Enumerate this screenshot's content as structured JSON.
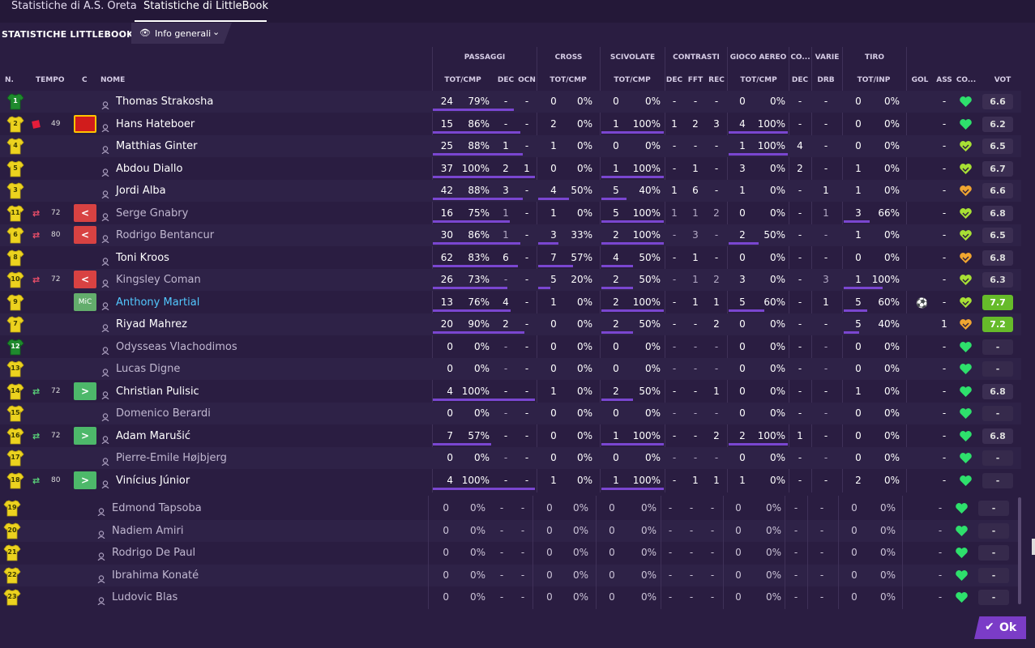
{
  "tabs": [
    "Statistiche di A.S. Oreta",
    "Statistiche di LittleBook"
  ],
  "title": "STATISTICHE LITTLEBOOK",
  "view": {
    "label": "Info generali"
  },
  "ok_label": "Ok",
  "groups": [
    "PASSAGGI",
    "CROSS",
    "SCIVOLATE",
    "CONTRASTI",
    "GIOCO AEREO",
    "CO...",
    "VARIE",
    "TIRO"
  ],
  "headers": [
    "N.",
    "TEMPO",
    "C",
    "NOME",
    "TOT/CMP",
    "DEC",
    "OCN",
    "TOT/CMP",
    "TOT/CMP",
    "DEC",
    "FFT",
    "REC",
    "TOT/CMP",
    "DEC",
    "DRB",
    "TOT/INP",
    "GOL",
    "ASS",
    "CO...",
    "VOT"
  ],
  "rows": [
    {
      "num": "1",
      "kit": "gk",
      "event": null,
      "min": "",
      "badge": null,
      "name": "Thomas Strakosha",
      "style": "",
      "pass_tot": "24",
      "pass_pct": "79%",
      "pass_bar": 0.79,
      "pass_dec": "-",
      "pass_ocn": "-",
      "cross_tot": "0",
      "cross_pct": "0%",
      "cross_bar": 0,
      "tack_tot": "0",
      "tack_pct": "0%",
      "tack_bar": 0,
      "con_dec": "-",
      "con_fft": "-",
      "con_rec": "-",
      "air_tot": "0",
      "air_pct": "0%",
      "air_bar": 0,
      "co_dec": "-",
      "drb": "-",
      "shot_tot": "0",
      "shot_pct": "0%",
      "shot_bar": 0,
      "gol": "",
      "ass": "-",
      "mood": "heart",
      "vot": "6.6",
      "vot_style": ""
    },
    {
      "num": "2",
      "kit": "out",
      "event": "red",
      "min": "49",
      "badge": "injury",
      "name": "Hans Hateboer",
      "style": "",
      "pass_tot": "15",
      "pass_pct": "86%",
      "pass_bar": 0.86,
      "pass_dec": "-",
      "pass_ocn": "-",
      "cross_tot": "2",
      "cross_pct": "0%",
      "cross_bar": 0,
      "tack_tot": "1",
      "tack_pct": "100%",
      "tack_bar": 1,
      "con_dec": "1",
      "con_fft": "2",
      "con_rec": "3",
      "air_tot": "4",
      "air_pct": "100%",
      "air_bar": 1,
      "co_dec": "-",
      "drb": "-",
      "shot_tot": "0",
      "shot_pct": "0%",
      "shot_bar": 0,
      "gol": "",
      "ass": "-",
      "mood": "heart",
      "vot": "6.2",
      "vot_style": ""
    },
    {
      "num": "4",
      "kit": "out",
      "event": null,
      "min": "",
      "badge": null,
      "name": "Matthias Ginter",
      "style": "",
      "pass_tot": "25",
      "pass_pct": "88%",
      "pass_bar": 0.88,
      "pass_dec": "1",
      "pass_ocn": "-",
      "cross_tot": "1",
      "cross_pct": "0%",
      "cross_bar": 0,
      "tack_tot": "0",
      "tack_pct": "0%",
      "tack_bar": 0,
      "con_dec": "-",
      "con_fft": "-",
      "con_rec": "-",
      "air_tot": "1",
      "air_pct": "100%",
      "air_bar": 1,
      "co_dec": "4",
      "drb": "-",
      "shot_tot": "0",
      "shot_pct": "0%",
      "shot_bar": 0,
      "gol": "",
      "ass": "-",
      "mood": "heart-y",
      "vot": "6.5",
      "vot_style": ""
    },
    {
      "num": "5",
      "kit": "out",
      "event": null,
      "min": "",
      "badge": null,
      "name": "Abdou Diallo",
      "style": "",
      "pass_tot": "37",
      "pass_pct": "100%",
      "pass_bar": 1,
      "pass_dec": "2",
      "pass_ocn": "1",
      "cross_tot": "0",
      "cross_pct": "0%",
      "cross_bar": 0,
      "tack_tot": "1",
      "tack_pct": "100%",
      "tack_bar": 1,
      "con_dec": "-",
      "con_fft": "1",
      "con_rec": "-",
      "air_tot": "3",
      "air_pct": "0%",
      "air_bar": 0,
      "co_dec": "2",
      "drb": "-",
      "shot_tot": "1",
      "shot_pct": "0%",
      "shot_bar": 0,
      "gol": "",
      "ass": "-",
      "mood": "heart-y",
      "vot": "6.7",
      "vot_style": ""
    },
    {
      "num": "3",
      "kit": "out",
      "event": null,
      "min": "",
      "badge": null,
      "name": "Jordi Alba",
      "style": "",
      "pass_tot": "42",
      "pass_pct": "88%",
      "pass_bar": 0.88,
      "pass_dec": "3",
      "pass_ocn": "-",
      "cross_tot": "4",
      "cross_pct": "50%",
      "cross_bar": 0.5,
      "tack_tot": "5",
      "tack_pct": "40%",
      "tack_bar": 0.4,
      "con_dec": "1",
      "con_fft": "6",
      "con_rec": "-",
      "air_tot": "1",
      "air_pct": "0%",
      "air_bar": 0,
      "co_dec": "-",
      "drb": "1",
      "shot_tot": "1",
      "shot_pct": "0%",
      "shot_bar": 0,
      "gol": "",
      "ass": "-",
      "mood": "heart-o",
      "vot": "6.6",
      "vot_style": ""
    },
    {
      "num": "11",
      "kit": "out",
      "event": "subout",
      "min": "72",
      "badge": "out",
      "name": "Serge Gnabry",
      "style": "dim",
      "pass_tot": "16",
      "pass_pct": "75%",
      "pass_bar": 0.75,
      "pass_dec": "1",
      "pass_ocn": "-",
      "cross_tot": "1",
      "cross_pct": "0%",
      "cross_bar": 0,
      "tack_tot": "5",
      "tack_pct": "100%",
      "tack_bar": 1,
      "con_dec": "1",
      "con_fft": "1",
      "con_rec": "2",
      "air_tot": "0",
      "air_pct": "0%",
      "air_bar": 0,
      "co_dec": "-",
      "drb": "1",
      "shot_tot": "3",
      "shot_pct": "66%",
      "shot_bar": 0.66,
      "gol": "",
      "ass": "-",
      "mood": "heart-y",
      "vot": "6.8",
      "vot_style": ""
    },
    {
      "num": "6",
      "kit": "out",
      "event": "subout",
      "min": "80",
      "badge": "out",
      "name": "Rodrigo Bentancur",
      "style": "dim",
      "pass_tot": "30",
      "pass_pct": "86%",
      "pass_bar": 0.86,
      "pass_dec": "1",
      "pass_ocn": "-",
      "cross_tot": "3",
      "cross_pct": "33%",
      "cross_bar": 0.33,
      "tack_tot": "2",
      "tack_pct": "100%",
      "tack_bar": 1,
      "con_dec": "-",
      "con_fft": "3",
      "con_rec": "-",
      "air_tot": "2",
      "air_pct": "50%",
      "air_bar": 0.5,
      "co_dec": "-",
      "drb": "-",
      "shot_tot": "1",
      "shot_pct": "0%",
      "shot_bar": 0,
      "gol": "",
      "ass": "-",
      "mood": "heart-y",
      "vot": "6.5",
      "vot_style": ""
    },
    {
      "num": "8",
      "kit": "out",
      "event": null,
      "min": "",
      "badge": null,
      "name": "Toni Kroos",
      "style": "",
      "pass_tot": "62",
      "pass_pct": "83%",
      "pass_bar": 0.83,
      "pass_dec": "6",
      "pass_ocn": "-",
      "cross_tot": "7",
      "cross_pct": "57%",
      "cross_bar": 0.57,
      "tack_tot": "4",
      "tack_pct": "50%",
      "tack_bar": 0.5,
      "con_dec": "-",
      "con_fft": "1",
      "con_rec": "-",
      "air_tot": "0",
      "air_pct": "0%",
      "air_bar": 0,
      "co_dec": "-",
      "drb": "-",
      "shot_tot": "0",
      "shot_pct": "0%",
      "shot_bar": 0,
      "gol": "",
      "ass": "-",
      "mood": "heart-o",
      "vot": "6.8",
      "vot_style": ""
    },
    {
      "num": "10",
      "kit": "out",
      "event": "subout",
      "min": "72",
      "badge": "out",
      "name": "Kingsley Coman",
      "style": "dim",
      "pass_tot": "26",
      "pass_pct": "73%",
      "pass_bar": 0.73,
      "pass_dec": "-",
      "pass_ocn": "-",
      "cross_tot": "5",
      "cross_pct": "20%",
      "cross_bar": 0.2,
      "tack_tot": "2",
      "tack_pct": "50%",
      "tack_bar": 0.5,
      "con_dec": "-",
      "con_fft": "1",
      "con_rec": "2",
      "air_tot": "3",
      "air_pct": "0%",
      "air_bar": 0,
      "co_dec": "-",
      "drb": "3",
      "shot_tot": "1",
      "shot_pct": "100%",
      "shot_bar": 1,
      "gol": "",
      "ass": "-",
      "mood": "heart-y",
      "vot": "6.3",
      "vot_style": ""
    },
    {
      "num": "9",
      "kit": "out",
      "event": null,
      "min": "",
      "badge": "mic",
      "name": "Anthony Martial",
      "style": "hl",
      "pass_tot": "13",
      "pass_pct": "76%",
      "pass_bar": 0.76,
      "pass_dec": "4",
      "pass_ocn": "-",
      "cross_tot": "1",
      "cross_pct": "0%",
      "cross_bar": 0,
      "tack_tot": "2",
      "tack_pct": "100%",
      "tack_bar": 1,
      "con_dec": "-",
      "con_fft": "1",
      "con_rec": "1",
      "air_tot": "5",
      "air_pct": "60%",
      "air_bar": 0.6,
      "co_dec": "-",
      "drb": "1",
      "shot_tot": "5",
      "shot_pct": "60%",
      "shot_bar": 0.6,
      "gol": "ball",
      "ass": "-",
      "mood": "heart-y",
      "vot": "7.7",
      "vot_style": "green"
    },
    {
      "num": "7",
      "kit": "out",
      "event": null,
      "min": "",
      "badge": null,
      "name": "Riyad Mahrez",
      "style": "",
      "pass_tot": "20",
      "pass_pct": "90%",
      "pass_bar": 0.9,
      "pass_dec": "2",
      "pass_ocn": "-",
      "cross_tot": "0",
      "cross_pct": "0%",
      "cross_bar": 0,
      "tack_tot": "2",
      "tack_pct": "50%",
      "tack_bar": 0.5,
      "con_dec": "-",
      "con_fft": "-",
      "con_rec": "2",
      "air_tot": "0",
      "air_pct": "0%",
      "air_bar": 0,
      "co_dec": "-",
      "drb": "-",
      "shot_tot": "5",
      "shot_pct": "40%",
      "shot_bar": 0.4,
      "gol": "",
      "ass": "1",
      "mood": "heart-o",
      "vot": "7.2",
      "vot_style": "green"
    },
    {
      "num": "12",
      "kit": "gk",
      "event": null,
      "min": "",
      "badge": null,
      "name": "Odysseas Vlachodimos",
      "style": "dim",
      "pass_tot": "0",
      "pass_pct": "0%",
      "pass_bar": 0,
      "pass_dec": "-",
      "pass_ocn": "-",
      "cross_tot": "0",
      "cross_pct": "0%",
      "cross_bar": 0,
      "tack_tot": "0",
      "tack_pct": "0%",
      "tack_bar": 0,
      "con_dec": "-",
      "con_fft": "-",
      "con_rec": "-",
      "air_tot": "0",
      "air_pct": "0%",
      "air_bar": 0,
      "co_dec": "-",
      "drb": "-",
      "shot_tot": "0",
      "shot_pct": "0%",
      "shot_bar": 0,
      "gol": "",
      "ass": "-",
      "mood": "heart",
      "vot": "-",
      "vot_style": "none"
    },
    {
      "num": "13",
      "kit": "out",
      "event": null,
      "min": "",
      "badge": null,
      "name": "Lucas Digne",
      "style": "dim",
      "pass_tot": "0",
      "pass_pct": "0%",
      "pass_bar": 0,
      "pass_dec": "-",
      "pass_ocn": "-",
      "cross_tot": "0",
      "cross_pct": "0%",
      "cross_bar": 0,
      "tack_tot": "0",
      "tack_pct": "0%",
      "tack_bar": 0,
      "con_dec": "-",
      "con_fft": "-",
      "con_rec": "-",
      "air_tot": "0",
      "air_pct": "0%",
      "air_bar": 0,
      "co_dec": "-",
      "drb": "-",
      "shot_tot": "0",
      "shot_pct": "0%",
      "shot_bar": 0,
      "gol": "",
      "ass": "-",
      "mood": "heart",
      "vot": "-",
      "vot_style": "none"
    },
    {
      "num": "14",
      "kit": "out",
      "event": "subin",
      "min": "72",
      "badge": "in",
      "name": "Christian Pulisic",
      "style": "",
      "pass_tot": "4",
      "pass_pct": "100%",
      "pass_bar": 1,
      "pass_dec": "-",
      "pass_ocn": "-",
      "cross_tot": "1",
      "cross_pct": "0%",
      "cross_bar": 0,
      "tack_tot": "2",
      "tack_pct": "50%",
      "tack_bar": 0.5,
      "con_dec": "-",
      "con_fft": "-",
      "con_rec": "1",
      "air_tot": "0",
      "air_pct": "0%",
      "air_bar": 0,
      "co_dec": "-",
      "drb": "-",
      "shot_tot": "1",
      "shot_pct": "0%",
      "shot_bar": 0,
      "gol": "",
      "ass": "-",
      "mood": "heart",
      "vot": "6.8",
      "vot_style": ""
    },
    {
      "num": "15",
      "kit": "out",
      "event": null,
      "min": "",
      "badge": null,
      "name": "Domenico Berardi",
      "style": "dim",
      "pass_tot": "0",
      "pass_pct": "0%",
      "pass_bar": 0,
      "pass_dec": "-",
      "pass_ocn": "-",
      "cross_tot": "0",
      "cross_pct": "0%",
      "cross_bar": 0,
      "tack_tot": "0",
      "tack_pct": "0%",
      "tack_bar": 0,
      "con_dec": "-",
      "con_fft": "-",
      "con_rec": "-",
      "air_tot": "0",
      "air_pct": "0%",
      "air_bar": 0,
      "co_dec": "-",
      "drb": "-",
      "shot_tot": "0",
      "shot_pct": "0%",
      "shot_bar": 0,
      "gol": "",
      "ass": "-",
      "mood": "heart",
      "vot": "-",
      "vot_style": "none"
    },
    {
      "num": "16",
      "kit": "out",
      "event": "subin",
      "min": "72",
      "badge": "in",
      "name": "Adam Marušić",
      "style": "",
      "pass_tot": "7",
      "pass_pct": "57%",
      "pass_bar": 0.57,
      "pass_dec": "-",
      "pass_ocn": "-",
      "cross_tot": "0",
      "cross_pct": "0%",
      "cross_bar": 0,
      "tack_tot": "1",
      "tack_pct": "100%",
      "tack_bar": 1,
      "con_dec": "-",
      "con_fft": "-",
      "con_rec": "2",
      "air_tot": "2",
      "air_pct": "100%",
      "air_bar": 1,
      "co_dec": "1",
      "drb": "-",
      "shot_tot": "0",
      "shot_pct": "0%",
      "shot_bar": 0,
      "gol": "",
      "ass": "-",
      "mood": "heart",
      "vot": "6.8",
      "vot_style": ""
    },
    {
      "num": "17",
      "kit": "out",
      "event": null,
      "min": "",
      "badge": null,
      "name": "Pierre-Emile Højbjerg",
      "style": "dim",
      "pass_tot": "0",
      "pass_pct": "0%",
      "pass_bar": 0,
      "pass_dec": "-",
      "pass_ocn": "-",
      "cross_tot": "0",
      "cross_pct": "0%",
      "cross_bar": 0,
      "tack_tot": "0",
      "tack_pct": "0%",
      "tack_bar": 0,
      "con_dec": "-",
      "con_fft": "-",
      "con_rec": "-",
      "air_tot": "0",
      "air_pct": "0%",
      "air_bar": 0,
      "co_dec": "-",
      "drb": "-",
      "shot_tot": "0",
      "shot_pct": "0%",
      "shot_bar": 0,
      "gol": "",
      "ass": "-",
      "mood": "heart",
      "vot": "-",
      "vot_style": "none"
    },
    {
      "num": "18",
      "kit": "out",
      "event": "subin",
      "min": "80",
      "badge": "in",
      "name": "Vinícius Júnior",
      "style": "",
      "pass_tot": "4",
      "pass_pct": "100%",
      "pass_bar": 1,
      "pass_dec": "-",
      "pass_ocn": "-",
      "cross_tot": "1",
      "cross_pct": "0%",
      "cross_bar": 0,
      "tack_tot": "1",
      "tack_pct": "100%",
      "tack_bar": 1,
      "con_dec": "-",
      "con_fft": "1",
      "con_rec": "1",
      "air_tot": "1",
      "air_pct": "0%",
      "air_bar": 0,
      "co_dec": "-",
      "drb": "-",
      "shot_tot": "2",
      "shot_pct": "0%",
      "shot_bar": 0,
      "gol": "",
      "ass": "-",
      "mood": "heart",
      "vot": "-",
      "vot_style": "none"
    }
  ],
  "bench": [
    {
      "num": "19",
      "name": "Edmond Tapsoba"
    },
    {
      "num": "20",
      "name": "Nadiem Amiri"
    },
    {
      "num": "21",
      "name": "Rodrigo De Paul"
    },
    {
      "num": "22",
      "name": "Ibrahima Konaté"
    },
    {
      "num": "23",
      "name": "Ludovic Blas"
    }
  ],
  "bench_stats": {
    "tot": "0",
    "pct": "0%",
    "dash": "-",
    "vot": "-"
  }
}
